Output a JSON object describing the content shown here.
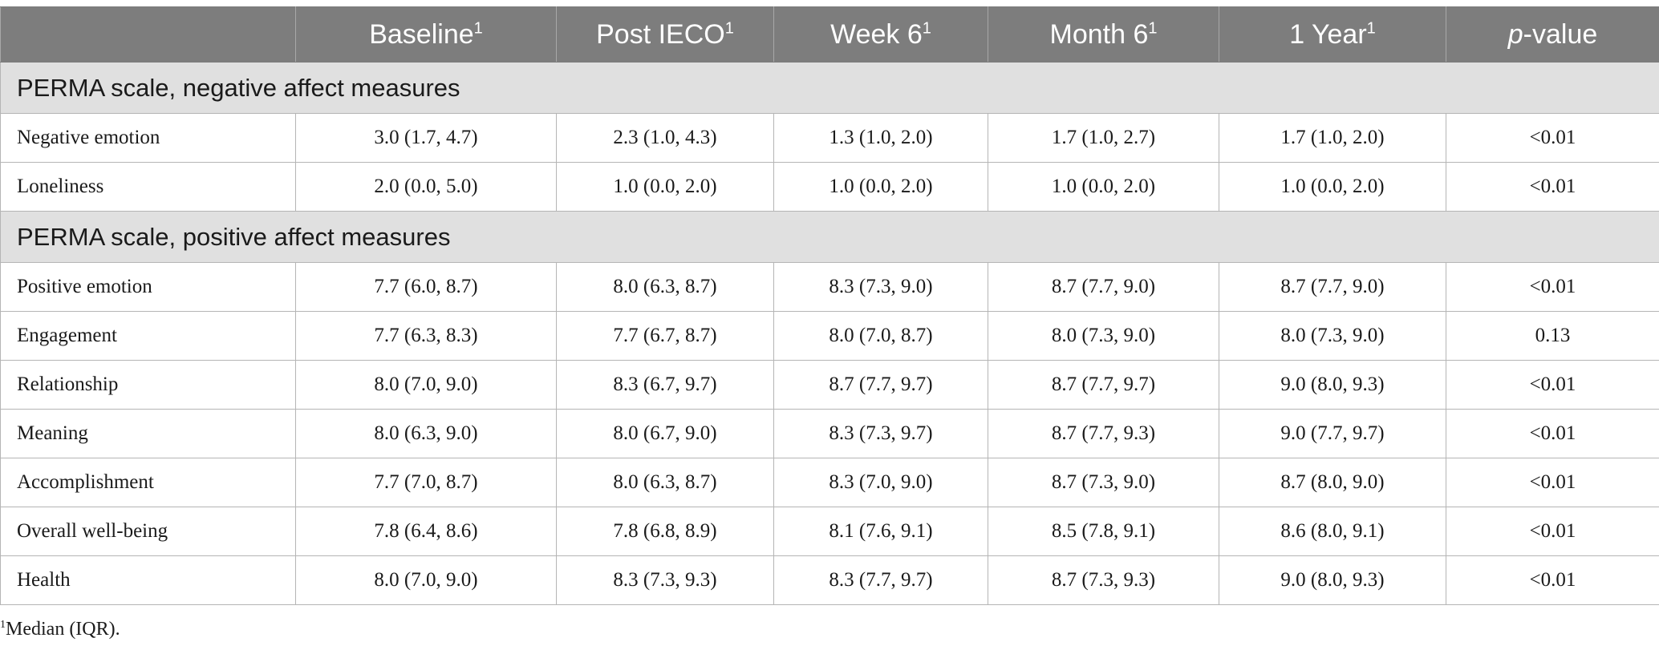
{
  "header": {
    "blank": "",
    "col1": "Baseline",
    "col2": "Post IECO",
    "col3": "Week 6",
    "col4": "Month 6",
    "col5": "1 Year",
    "col6_italic": "p",
    "col6_rest": "-value",
    "footnote_marker": "1"
  },
  "sections": {
    "negative": {
      "title": "PERMA scale, negative affect measures",
      "rows": [
        {
          "label": "Negative emotion",
          "values": [
            "3.0 (1.7, 4.7)",
            "2.3 (1.0, 4.3)",
            "1.3 (1.0, 2.0)",
            "1.7 (1.0, 2.7)",
            "1.7 (1.0, 2.0)",
            "<0.01"
          ]
        },
        {
          "label": "Loneliness",
          "values": [
            "2.0 (0.0, 5.0)",
            "1.0 (0.0, 2.0)",
            "1.0 (0.0, 2.0)",
            "1.0 (0.0, 2.0)",
            "1.0 (0.0, 2.0)",
            "<0.01"
          ]
        }
      ]
    },
    "positive": {
      "title": "PERMA scale, positive affect measures",
      "rows": [
        {
          "label": "Positive emotion",
          "values": [
            "7.7 (6.0, 8.7)",
            "8.0 (6.3, 8.7)",
            "8.3 (7.3, 9.0)",
            "8.7 (7.7, 9.0)",
            "8.7 (7.7, 9.0)",
            "<0.01"
          ]
        },
        {
          "label": "Engagement",
          "values": [
            "7.7 (6.3, 8.3)",
            "7.7 (6.7, 8.7)",
            "8.0 (7.0, 8.7)",
            "8.0 (7.3, 9.0)",
            "8.0 (7.3, 9.0)",
            "0.13"
          ]
        },
        {
          "label": "Relationship",
          "values": [
            "8.0 (7.0, 9.0)",
            "8.3 (6.7, 9.7)",
            "8.7 (7.7, 9.7)",
            "8.7 (7.7, 9.7)",
            "9.0 (8.0, 9.3)",
            "<0.01"
          ]
        },
        {
          "label": "Meaning",
          "values": [
            "8.0 (6.3, 9.0)",
            "8.0 (6.7, 9.0)",
            "8.3 (7.3, 9.7)",
            "8.7 (7.7, 9.3)",
            "9.0 (7.7, 9.7)",
            "<0.01"
          ]
        },
        {
          "label": "Accomplishment",
          "values": [
            "7.7 (7.0, 8.7)",
            "8.0 (6.3, 8.7)",
            "8.3 (7.0, 9.0)",
            "8.7 (7.3, 9.0)",
            "8.7 (8.0, 9.0)",
            "<0.01"
          ]
        },
        {
          "label": "Overall well-being",
          "values": [
            "7.8 (6.4, 8.6)",
            "7.8 (6.8, 8.9)",
            "8.1 (7.6, 9.1)",
            "8.5 (7.8, 9.1)",
            "8.6 (8.0, 9.1)",
            "<0.01"
          ]
        },
        {
          "label": "Health",
          "values": [
            "8.0 (7.0, 9.0)",
            "8.3 (7.3, 9.3)",
            "8.3 (7.7, 9.7)",
            "8.7 (7.3, 9.3)",
            "9.0 (8.0, 9.3)",
            "<0.01"
          ]
        }
      ]
    }
  },
  "footnote": {
    "marker": "1",
    "text": "Median (IQR)."
  }
}
